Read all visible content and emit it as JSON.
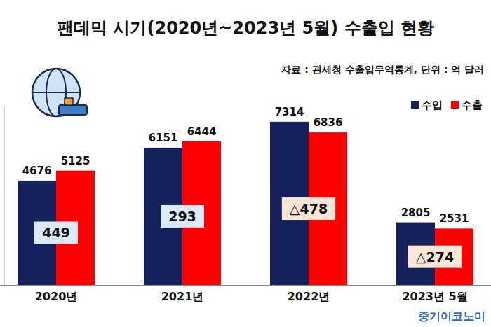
{
  "chart_data": {
    "type": "bar",
    "title": "팬데믹 시기(2020년~2023년 5월) 수출입 현황",
    "subtitle": "자료 : 관세청 수출입무역통계, 단위 : 억 달러",
    "categories": [
      "2020년",
      "2021년",
      "2022년",
      "2023년 5월"
    ],
    "series": [
      {
        "name": "수입",
        "color": "#14215a",
        "values": [
          4676,
          6151,
          7314,
          2805
        ]
      },
      {
        "name": "수출",
        "color": "#ff0000",
        "values": [
          5125,
          6444,
          6836,
          2531
        ]
      }
    ],
    "balance": {
      "values": [
        449,
        293,
        -478,
        -274
      ],
      "value_labels": [
        "449",
        "293",
        "△478",
        "△274"
      ]
    },
    "ylim": [
      0,
      8000
    ],
    "tick_labels": "x",
    "data_labels": true,
    "legend": "upper right",
    "grid": false,
    "annotations": [
      "중기이코노미"
    ]
  }
}
